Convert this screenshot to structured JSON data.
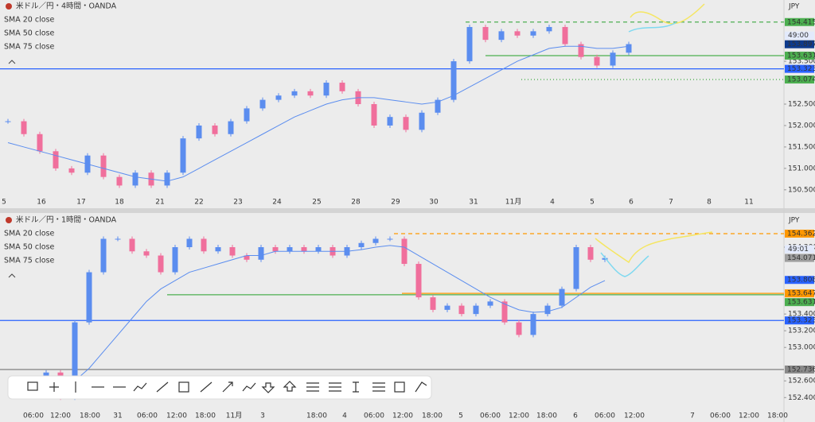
{
  "chart_data": [
    {
      "type": "candlestick",
      "title": "米ドル／円・4時間・OANDA",
      "currency": "JPY",
      "indicators": [
        "SMA 20 close",
        "SMA 50 close",
        "SMA 75 close"
      ],
      "up_color": "#5b8def",
      "down_color": "#f06f9c",
      "sma_color": "#5b8def",
      "close": [
        152.1,
        151.8,
        151.4,
        151.0,
        150.9,
        151.3,
        150.8,
        150.6,
        150.9,
        150.6,
        150.9,
        151.7,
        152.0,
        151.8,
        152.1,
        152.4,
        152.6,
        152.7,
        152.8,
        152.7,
        153.0,
        152.8,
        152.5,
        152.0,
        152.2,
        151.9,
        152.3,
        152.6,
        153.5,
        154.3,
        154.0,
        154.2,
        154.1,
        154.2,
        154.3,
        153.9,
        153.6,
        153.4,
        153.7,
        153.9
      ],
      "sma": [
        151.6,
        151.5,
        151.4,
        151.3,
        151.2,
        151.1,
        151.0,
        150.9,
        150.8,
        150.75,
        150.7,
        150.8,
        151.0,
        151.2,
        151.4,
        151.6,
        151.8,
        152.0,
        152.2,
        152.35,
        152.5,
        152.6,
        152.65,
        152.65,
        152.6,
        152.55,
        152.5,
        152.55,
        152.7,
        152.9,
        153.1,
        153.3,
        153.5,
        153.65,
        153.8,
        153.85,
        153.85,
        153.8,
        153.8,
        153.85
      ],
      "ylim": [
        150.33,
        154.93
      ],
      "yticks": [
        {
          "value": 150.5,
          "label": "150.500"
        },
        {
          "value": 151,
          "label": "151.000"
        },
        {
          "value": 151.5,
          "label": "151.500"
        },
        {
          "value": 152,
          "label": "152.000"
        },
        {
          "value": 152.5,
          "label": "152.500"
        },
        {
          "value": 153.5,
          "label": "153.500"
        }
      ],
      "xticks": [
        "5",
        "16",
        "17",
        "18",
        "21",
        "22",
        "23",
        "24",
        "25",
        "28",
        "29",
        "30",
        "31",
        "11月",
        "4",
        "5",
        "6",
        "7",
        "8",
        "11"
      ],
      "levels": [
        {
          "value": 154.415,
          "label": "154.415",
          "color": "#4caf50",
          "style": "dashed"
        },
        {
          "value": 153.631,
          "label": "153.631",
          "color": "#4caf50",
          "style": "solid"
        },
        {
          "value": 153.323,
          "label": "153.323",
          "color": "#2962ff",
          "style": "solid"
        },
        {
          "value": 153.074,
          "label": "153.074",
          "color": "#4caf50",
          "style": "dotted"
        }
      ],
      "current": {
        "value": 153.897,
        "label": "153.897",
        "color": "#0d3a8c",
        "countdown": "49:00"
      }
    },
    {
      "type": "candlestick",
      "title": "米ドル／円・1時間・OANDA",
      "currency": "JPY",
      "indicators": [
        "SMA 20 close",
        "SMA 50 close",
        "SMA 75 close"
      ],
      "up_color": "#5b8def",
      "down_color": "#f06f9c",
      "sma_color": "#5b8def",
      "close": [
        152.6,
        152.7,
        152.4,
        153.3,
        153.9,
        154.3,
        154.3,
        154.15,
        154.1,
        153.9,
        154.2,
        154.3,
        154.15,
        154.2,
        154.1,
        154.05,
        154.2,
        154.15,
        154.2,
        154.15,
        154.2,
        154.1,
        154.2,
        154.25,
        154.3,
        154.3,
        154.0,
        153.6,
        153.45,
        153.5,
        153.4,
        153.5,
        153.55,
        153.3,
        153.15,
        153.4,
        153.5,
        153.7,
        154.2,
        154.05,
        154.07
      ],
      "sma": [
        152.4,
        152.45,
        152.5,
        152.6,
        152.75,
        152.95,
        153.15,
        153.35,
        153.55,
        153.7,
        153.8,
        153.9,
        153.95,
        154.0,
        154.05,
        154.1,
        154.1,
        154.15,
        154.15,
        154.15,
        154.15,
        154.15,
        154.15,
        154.17,
        154.2,
        154.22,
        154.2,
        154.1,
        154.0,
        153.9,
        153.8,
        153.7,
        153.6,
        153.52,
        153.45,
        153.42,
        153.43,
        153.48,
        153.6,
        153.72,
        153.8
      ],
      "ylim": [
        152.26,
        154.59
      ],
      "yticks": [
        {
          "value": 154.2,
          "label": "154.200"
        },
        {
          "value": 153.4,
          "label": "153.400"
        },
        {
          "value": 153.2,
          "label": "153.200"
        },
        {
          "value": 153,
          "label": "153.000"
        },
        {
          "value": 152.6,
          "label": "152.600"
        },
        {
          "value": 152.4,
          "label": "152.400"
        }
      ],
      "xticks": [
        "06:00",
        "12:00",
        "18:00",
        "31",
        "06:00",
        "12:00",
        "18:00",
        "11月",
        "3",
        "18:00",
        "4",
        "06:00",
        "12:00",
        "18:00",
        "5",
        "06:00",
        "12:00",
        "18:00",
        "6",
        "06:00",
        "12:00",
        "7",
        "06:00",
        "12:00",
        "18:00"
      ],
      "levels": [
        {
          "value": 154.362,
          "label": "154.362",
          "color": "#ff9800",
          "style": "dashed"
        },
        {
          "value": 153.647,
          "label": "153.647",
          "color": "#ff9800",
          "style": "solid"
        },
        {
          "value": 153.808,
          "label": "153.808",
          "color": "#2962ff",
          "style": "none"
        },
        {
          "value": 153.631,
          "label": "153.631",
          "color": "#4caf50",
          "style": "solid"
        },
        {
          "value": 153.323,
          "label": "153.323",
          "color": "#2962ff",
          "style": "solid"
        },
        {
          "value": 152.736,
          "label": "152.736",
          "color": "#8a8a8a",
          "style": "solid"
        }
      ],
      "current": {
        "value": 154.071,
        "label": "154.071",
        "color": "#9e9e9e",
        "countdown": "49:01"
      }
    }
  ]
}
